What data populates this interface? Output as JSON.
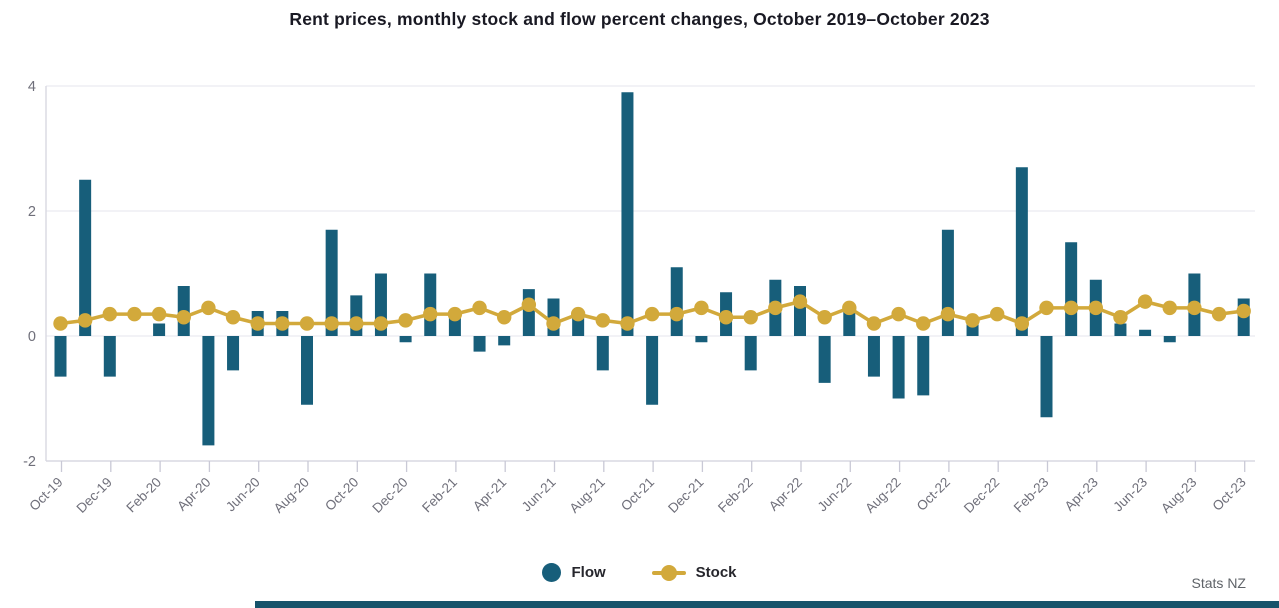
{
  "title": "Rent prices, monthly stock and flow percent changes, October 2019–October 2023",
  "source": "Stats NZ",
  "legend": {
    "flow_label": "Flow",
    "stock_label": "Stock"
  },
  "colors": {
    "flow": "#175e7a",
    "stock": "#d2a93b",
    "grid": "#e9e9f0",
    "axis": "#d8d8e2",
    "tick": "#c9c9d6",
    "axis_label": "#6f6f7a",
    "bottom_bar": "#16536b"
  },
  "chart_data": {
    "type": "bar",
    "subtype": "bar-and-line-combo",
    "title": "Rent prices, monthly stock and flow percent changes, October 2019–October 2023",
    "x": [
      "Oct-19",
      "Nov-19",
      "Dec-19",
      "Jan-20",
      "Feb-20",
      "Mar-20",
      "Apr-20",
      "May-20",
      "Jun-20",
      "Jul-20",
      "Aug-20",
      "Sep-20",
      "Oct-20",
      "Nov-20",
      "Dec-20",
      "Jan-21",
      "Feb-21",
      "Mar-21",
      "Apr-21",
      "May-21",
      "Jun-21",
      "Jul-21",
      "Aug-21",
      "Sep-21",
      "Oct-21",
      "Nov-21",
      "Dec-21",
      "Jan-22",
      "Feb-22",
      "Mar-22",
      "Apr-22",
      "May-22",
      "Jun-22",
      "Jul-22",
      "Aug-22",
      "Sep-22",
      "Oct-22",
      "Nov-22",
      "Dec-22",
      "Jan-23",
      "Feb-23",
      "Mar-23",
      "Apr-23",
      "May-23",
      "Jun-23",
      "Jul-23",
      "Aug-23",
      "Sep-23",
      "Oct-23"
    ],
    "x_tick_labels": [
      "Oct-19",
      "Dec-19",
      "Feb-20",
      "Apr-20",
      "Jun-20",
      "Aug-20",
      "Oct-20",
      "Dec-20",
      "Feb-21",
      "Apr-21",
      "Jun-21",
      "Aug-21",
      "Oct-21",
      "Dec-21",
      "Feb-22",
      "Apr-22",
      "Jun-22",
      "Aug-22",
      "Oct-22",
      "Dec-22",
      "Feb-23",
      "Apr-23",
      "Jun-23",
      "Aug-23",
      "Oct-23"
    ],
    "series": [
      {
        "name": "Flow",
        "type": "bar",
        "values": [
          -0.65,
          2.5,
          -0.65,
          0,
          0.2,
          0.8,
          -1.75,
          -0.55,
          0.4,
          0.4,
          -1.1,
          1.7,
          0.65,
          1.0,
          -0.1,
          1.0,
          0.4,
          -0.25,
          -0.15,
          0.75,
          0.6,
          0.35,
          -0.55,
          3.9,
          -1.1,
          1.1,
          -0.1,
          0.7,
          -0.55,
          0.9,
          0.8,
          -0.75,
          0.45,
          -0.65,
          -1.0,
          -0.95,
          1.7,
          0.25,
          0,
          2.7,
          -1.3,
          1.5,
          0.9,
          0.2,
          0.1,
          -0.1,
          1.0,
          0,
          0.6
        ]
      },
      {
        "name": "Stock",
        "type": "line",
        "values": [
          0.2,
          0.25,
          0.35,
          0.35,
          0.35,
          0.3,
          0.45,
          0.3,
          0.2,
          0.2,
          0.2,
          0.2,
          0.2,
          0.2,
          0.25,
          0.35,
          0.35,
          0.45,
          0.3,
          0.5,
          0.2,
          0.35,
          0.25,
          0.2,
          0.35,
          0.35,
          0.45,
          0.3,
          0.3,
          0.45,
          0.55,
          0.3,
          0.45,
          0.2,
          0.35,
          0.2,
          0.35,
          0.25,
          0.35,
          0.2,
          0.45,
          0.45,
          0.45,
          0.3,
          0.55,
          0.45,
          0.45,
          0.35,
          0.4
        ]
      }
    ],
    "ylabel": "",
    "xlabel": "",
    "yticks": [
      4,
      2,
      0,
      -2
    ],
    "ylim": [
      -2.1,
      4.2
    ],
    "grid": true,
    "legend_position": "bottom"
  }
}
